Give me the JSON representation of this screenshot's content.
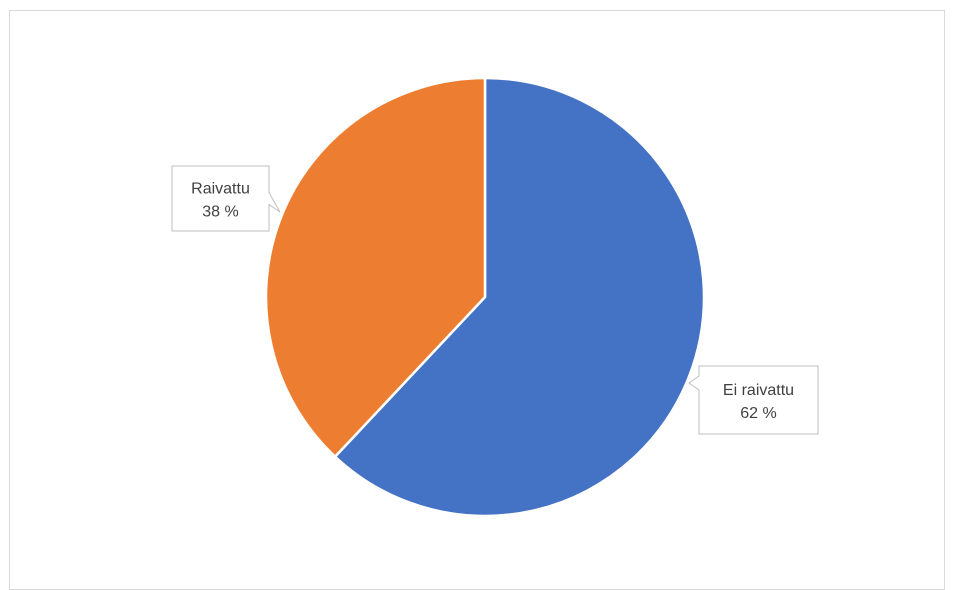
{
  "chart_data": {
    "type": "pie",
    "slices": [
      {
        "label": "Ei raivattu",
        "value": 62,
        "value_label": "62 %",
        "color": "#4472C4"
      },
      {
        "label": "Raivattu",
        "value": 38,
        "value_label": "38 %",
        "color": "#ED7D31"
      }
    ],
    "title": "",
    "legend": "none",
    "data_labels": "callout"
  }
}
